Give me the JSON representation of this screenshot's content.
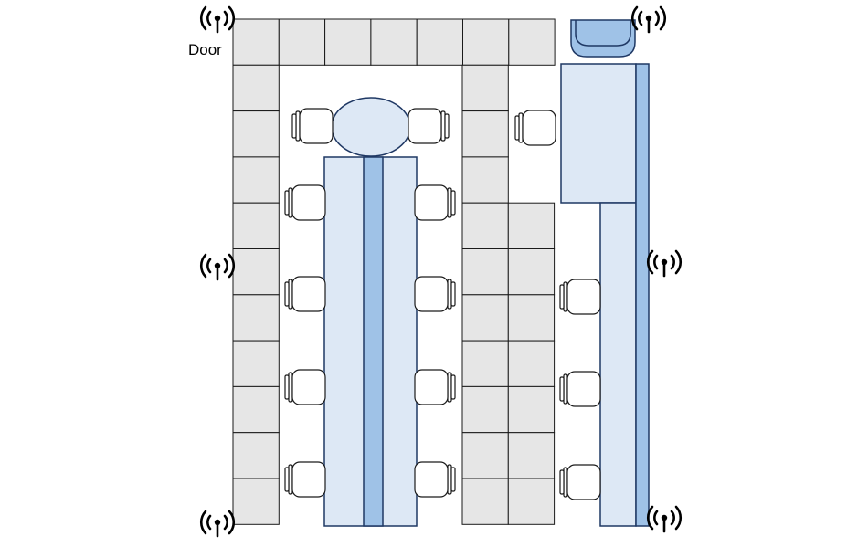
{
  "labels": {
    "door": "Door"
  },
  "colors": {
    "floor_tile": "#e6e6e6",
    "desk_light": "#dde8f5",
    "desk_accent": "#9fc2e7",
    "outline": "#1f3864"
  },
  "legend_items": {
    "access_point_icon": "wifi-antenna-icon",
    "chair_icon": "office-chair-icon"
  }
}
